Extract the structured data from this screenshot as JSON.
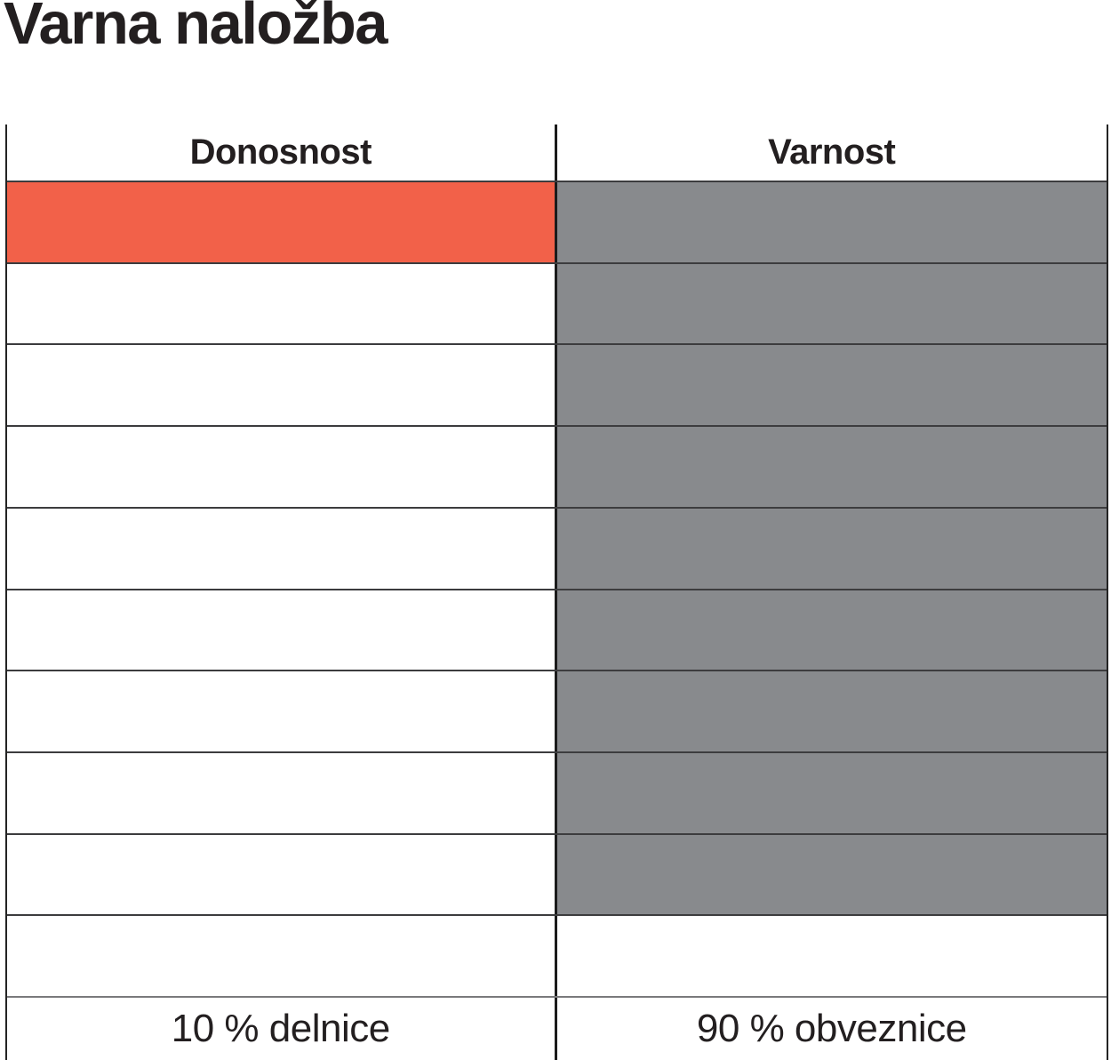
{
  "title": "Varna naložba",
  "colors": {
    "accent_red": "#F26149",
    "fill_gray": "#888A8D",
    "grid_line": "#3C3C3E",
    "divider": "#1B1B1B",
    "text": "#231F20",
    "background": "#FFFFFF"
  },
  "table": {
    "total_rows": 10,
    "columns": [
      {
        "id": "donosnost",
        "header": "Donosnost",
        "footer": "10 % delnice",
        "filled_cells": 1,
        "fill_color": "#F26149"
      },
      {
        "id": "varnost",
        "header": "Varnost",
        "footer": "90 % obveznice",
        "filled_cells": 9,
        "fill_color": "#888A8D"
      }
    ]
  },
  "chart_data": {
    "type": "table",
    "title": "Varna naložba",
    "columns": [
      "Donosnost",
      "Varnost"
    ],
    "rows": 10,
    "grid": true,
    "legend_position": "bottom",
    "series": [
      {
        "name": "Donosnost",
        "label": "10 % delnice",
        "percent": 10,
        "filled_cells": 1,
        "total_cells": 10,
        "color": "#F26149"
      },
      {
        "name": "Varnost",
        "label": "90 % obveznice",
        "percent": 90,
        "filled_cells": 9,
        "total_cells": 10,
        "color": "#888A8D"
      }
    ]
  }
}
